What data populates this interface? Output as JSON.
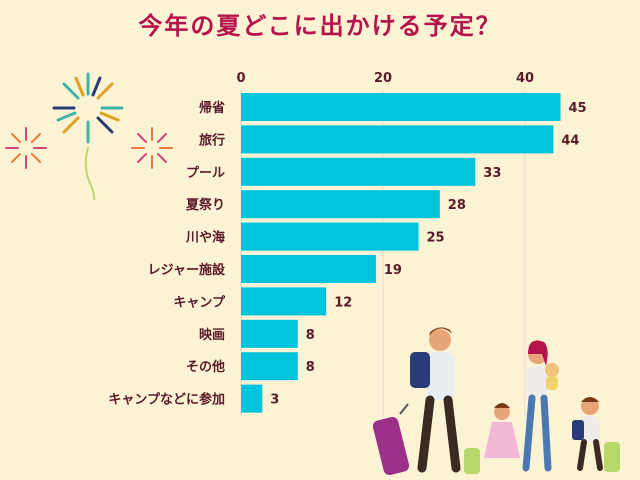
{
  "title": "今年の夏どこに出かける予定？",
  "colors": {
    "bar": "#00c4dc",
    "text": "#5a1a2a",
    "title": "#b5134b",
    "background": "#fcf3d4",
    "grid": "#e6ddc6"
  },
  "chart_data": {
    "type": "bar",
    "orientation": "horizontal",
    "title": "今年の夏どこに出かける予定？",
    "categories": [
      "帰省",
      "旅行",
      "プール",
      "夏祭り",
      "川や海",
      "レジャー施設",
      "キャンプ",
      "映画",
      "その他",
      "キャンプなどに参加"
    ],
    "values": [
      45,
      44,
      33,
      28,
      25,
      19,
      12,
      8,
      8,
      3
    ],
    "xticks": [
      "0",
      "20",
      "40"
    ],
    "xlim": [
      0,
      45
    ],
    "grid": true,
    "data_labels": true,
    "legend": "none"
  }
}
